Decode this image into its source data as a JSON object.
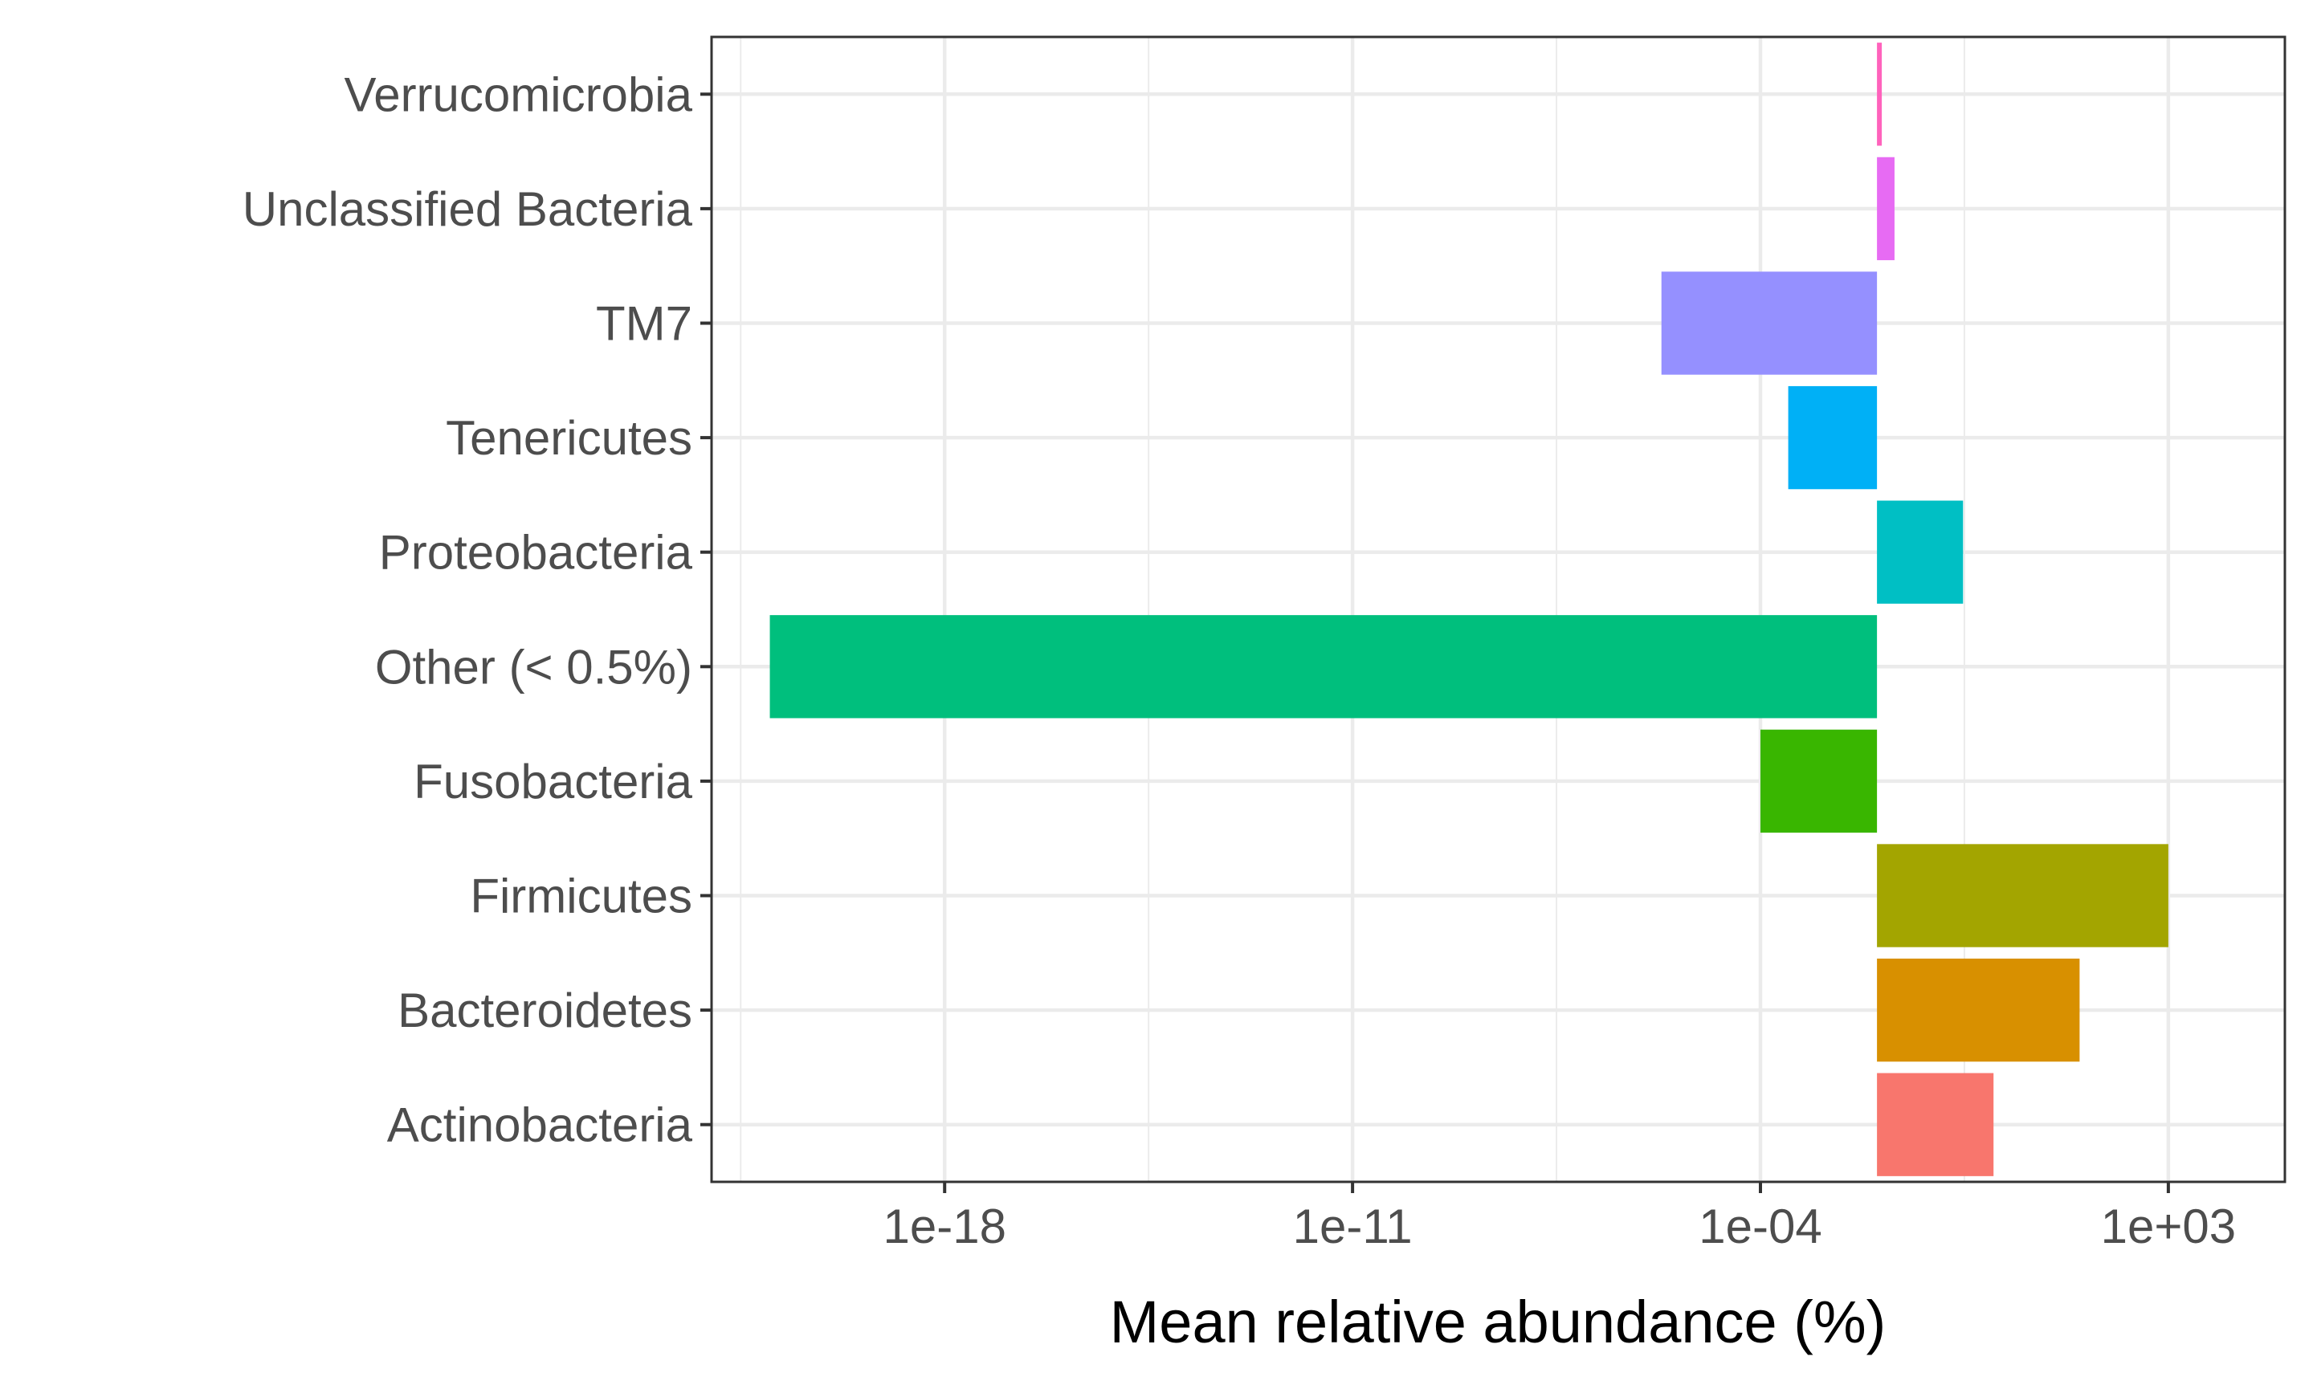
{
  "chart_data": {
    "type": "bar",
    "orientation": "horizontal",
    "title": "",
    "xlabel": "Mean relative abundance (%)",
    "ylabel": "",
    "x_scale": "log10",
    "xlim": [
      1e-22,
      100000.0
    ],
    "x_ticks": [
      1e-18,
      1e-11,
      0.0001,
      1000.0
    ],
    "x_tick_labels": [
      "1e-18",
      "1e-11",
      "1e-04",
      "1e+03"
    ],
    "grid": true,
    "legend": "none",
    "baseline": 0.01,
    "categories": [
      "Actinobacteria",
      "Bacteroidetes",
      "Firmicutes",
      "Fusobacteria",
      "Other (< 0.5%)",
      "Proteobacteria",
      "Tenericutes",
      "TM7",
      "Unclassified Bacteria",
      "Verrucomicrobia"
    ],
    "values": [
      1,
      30,
      1000,
      0.0001,
      1e-21,
      0.3,
      0.0003,
      2e-06,
      0.02,
      0.01
    ],
    "colors": [
      "#F8766D",
      "#D89000",
      "#A3A500",
      "#39B600",
      "#00BF7D",
      "#00BFC4",
      "#00B0F6",
      "#9590FF",
      "#E76BF3",
      "#FF62BC"
    ]
  }
}
